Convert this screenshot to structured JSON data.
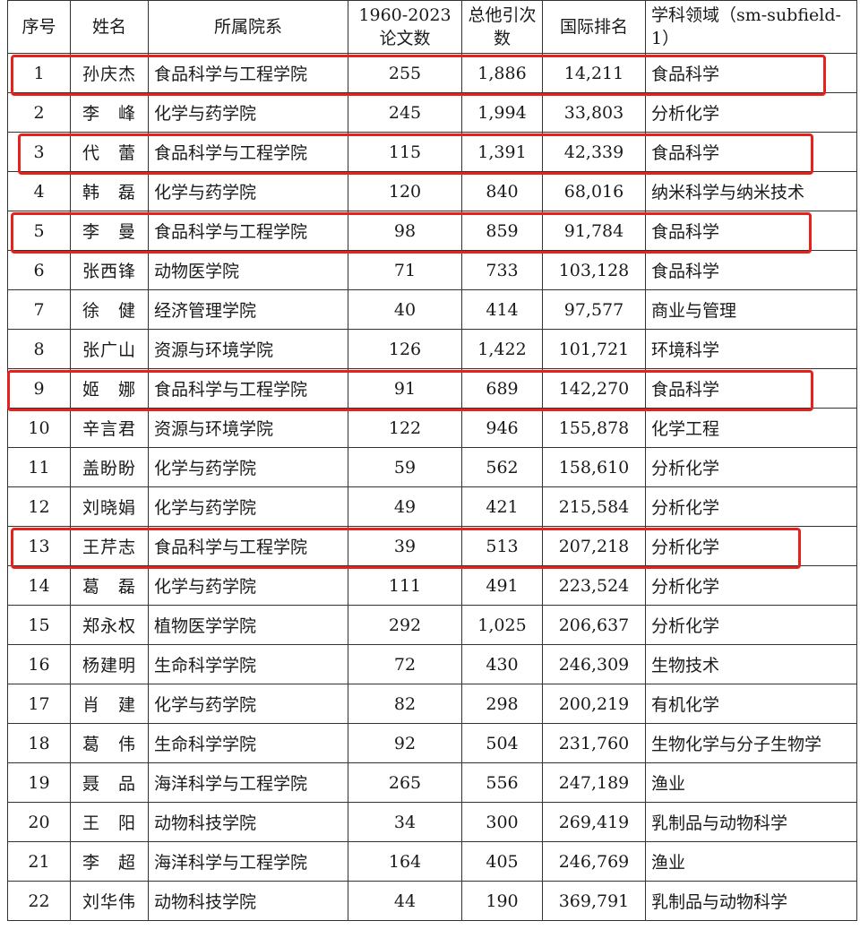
{
  "headers": [
    "序号",
    "姓名",
    "所属院系",
    "1960-2023论文数",
    "总他引次数",
    "国际排名",
    "学科领域（sm-subfield-1）"
  ],
  "rows": [
    {
      "no": "1",
      "name": "孙庆杰",
      "dept": "食品科学与工程学院",
      "papers": "255",
      "citations": "1,886",
      "rank": "14,211",
      "field": "食品科学",
      "highlighted": true
    },
    {
      "no": "2",
      "name": "李　峰",
      "dept": "化学与药学院",
      "papers": "245",
      "citations": "1,994",
      "rank": "33,803",
      "field": "分析化学",
      "highlighted": false
    },
    {
      "no": "3",
      "name": "代　蕾",
      "dept": "食品科学与工程学院",
      "papers": "115",
      "citations": "1,391",
      "rank": "42,339",
      "field": "食品科学",
      "highlighted": true
    },
    {
      "no": "4",
      "name": "韩　磊",
      "dept": "化学与药学院",
      "papers": "120",
      "citations": "840",
      "rank": "68,016",
      "field": "纳米科学与纳米技术",
      "highlighted": false
    },
    {
      "no": "5",
      "name": "李　曼",
      "dept": "食品科学与工程学院",
      "papers": "98",
      "citations": "859",
      "rank": "91,784",
      "field": "食品科学",
      "highlighted": true
    },
    {
      "no": "6",
      "name": "张西锋",
      "dept": "动物医学院",
      "papers": "71",
      "citations": "733",
      "rank": "103,128",
      "field": "食品科学",
      "highlighted": false
    },
    {
      "no": "7",
      "name": "徐　健",
      "dept": "经济管理学院",
      "papers": "40",
      "citations": "414",
      "rank": "97,577",
      "field": "商业与管理",
      "highlighted": false
    },
    {
      "no": "8",
      "name": "张广山",
      "dept": "资源与环境学院",
      "papers": "126",
      "citations": "1,422",
      "rank": "101,721",
      "field": "环境科学",
      "highlighted": false
    },
    {
      "no": "9",
      "name": "姬　娜",
      "dept": "食品科学与工程学院",
      "papers": "91",
      "citations": "689",
      "rank": "142,270",
      "field": "食品科学",
      "highlighted": true
    },
    {
      "no": "10",
      "name": "辛言君",
      "dept": "资源与环境学院",
      "papers": "122",
      "citations": "946",
      "rank": "155,878",
      "field": "化学工程",
      "highlighted": false
    },
    {
      "no": "11",
      "name": "盖盼盼",
      "dept": "化学与药学院",
      "papers": "59",
      "citations": "562",
      "rank": "158,610",
      "field": "分析化学",
      "highlighted": false
    },
    {
      "no": "12",
      "name": "刘晓娟",
      "dept": "化学与药学院",
      "papers": "49",
      "citations": "421",
      "rank": "215,584",
      "field": "分析化学",
      "highlighted": false
    },
    {
      "no": "13",
      "name": "王芹志",
      "dept": "食品科学与工程学院",
      "papers": "39",
      "citations": "513",
      "rank": "207,218",
      "field": "分析化学",
      "highlighted": true
    },
    {
      "no": "14",
      "name": "葛　磊",
      "dept": "化学与药学院",
      "papers": "111",
      "citations": "491",
      "rank": "223,524",
      "field": "分析化学",
      "highlighted": false
    },
    {
      "no": "15",
      "name": "郑永权",
      "dept": "植物医学学院",
      "papers": "292",
      "citations": "1,025",
      "rank": "206,637",
      "field": "分析化学",
      "highlighted": false
    },
    {
      "no": "16",
      "name": "杨建明",
      "dept": "生命科学学院",
      "papers": "72",
      "citations": "430",
      "rank": "246,309",
      "field": "生物技术",
      "highlighted": false
    },
    {
      "no": "17",
      "name": "肖　建",
      "dept": "化学与药学院",
      "papers": "82",
      "citations": "298",
      "rank": "200,219",
      "field": "有机化学",
      "highlighted": false
    },
    {
      "no": "18",
      "name": "葛　伟",
      "dept": "生命科学学院",
      "papers": "92",
      "citations": "504",
      "rank": "231,760",
      "field": "生物化学与分子生物学",
      "highlighted": false
    },
    {
      "no": "19",
      "name": "聂　品",
      "dept": "海洋科学与工程学院",
      "papers": "265",
      "citations": "556",
      "rank": "247,189",
      "field": "渔业",
      "highlighted": false
    },
    {
      "no": "20",
      "name": "王　阳",
      "dept": "动物科技学院",
      "papers": "34",
      "citations": "300",
      "rank": "269,419",
      "field": "乳制品与动物科学",
      "highlighted": false
    },
    {
      "no": "21",
      "name": "李　超",
      "dept": "海洋科学与工程学院",
      "papers": "164",
      "citations": "405",
      "rank": "246,769",
      "field": "渔业",
      "highlighted": false
    },
    {
      "no": "22",
      "name": "刘华伟",
      "dept": "动物科技学院",
      "papers": "44",
      "citations": "190",
      "rank": "369,791",
      "field": "乳制品与动物科学",
      "highlighted": false
    }
  ],
  "highlight_color": "#e8211d"
}
